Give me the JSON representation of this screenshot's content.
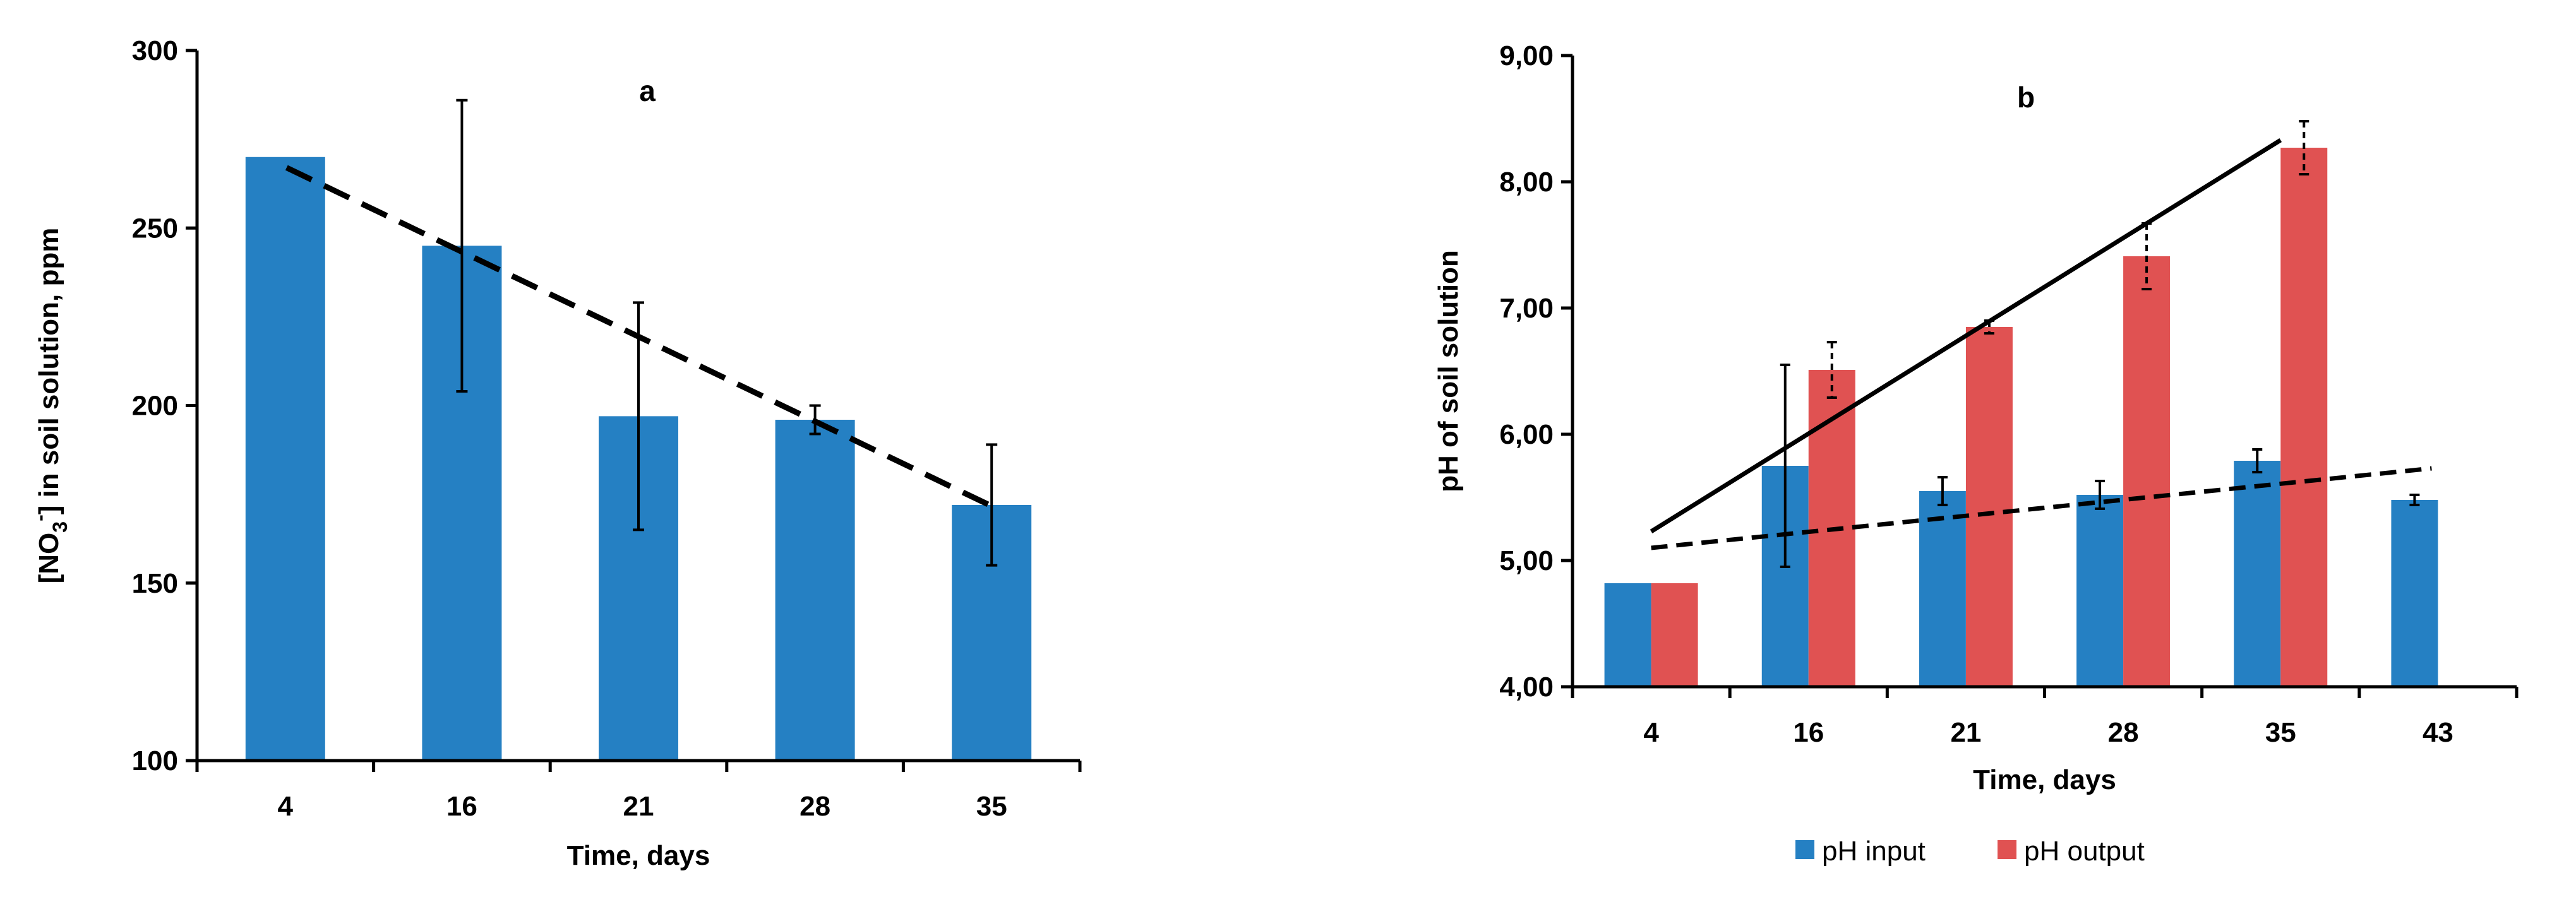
{
  "chart_data": [
    {
      "type": "bar",
      "panel_label": "a",
      "categories": [
        "4",
        "16",
        "21",
        "28",
        "35"
      ],
      "series": [
        {
          "values": [
            270,
            245,
            197,
            196,
            172
          ],
          "error": [
            null,
            41,
            32,
            4,
            17
          ],
          "color": "#2580C3"
        }
      ],
      "trendline": {
        "style": "dashed",
        "y_start": 267,
        "y_end": 171
      },
      "xlabel": "Time, days",
      "ylabel_parts": [
        "[NO",
        "3",
        "-",
        "] in soil solution, ppm"
      ],
      "ylim": [
        100,
        300
      ],
      "yticks": [
        "100",
        "150",
        "200",
        "250",
        "300"
      ],
      "grid": false,
      "legend": "none"
    },
    {
      "type": "bar",
      "panel_label": "b",
      "categories": [
        "4",
        "16",
        "21",
        "28",
        "35",
        "43"
      ],
      "series": [
        {
          "name": "pH input",
          "values": [
            4.82,
            5.75,
            5.55,
            5.52,
            5.79,
            5.48
          ],
          "error": [
            null,
            0.8,
            0.11,
            0.11,
            0.09,
            0.04
          ],
          "color": "#2580C3"
        },
        {
          "name": "pH output",
          "values": [
            4.82,
            6.51,
            6.85,
            7.41,
            8.27,
            null
          ],
          "error": [
            null,
            0.22,
            0.05,
            0.26,
            0.21,
            null
          ],
          "color": "#E05252"
        }
      ],
      "trendlines": [
        {
          "style": "solid",
          "y_start": 5.23,
          "y_end": 8.33
        },
        {
          "style": "dashed",
          "y_start": 5.1,
          "y_end": 5.73
        }
      ],
      "xlabel": "Time, days",
      "ylabel": "pH of soil solution",
      "ylim": [
        4,
        9
      ],
      "yticks": [
        "4,00",
        "5,00",
        "6,00",
        "7,00",
        "8,00",
        "9,00"
      ],
      "grid": false,
      "legend": "bottom"
    }
  ]
}
